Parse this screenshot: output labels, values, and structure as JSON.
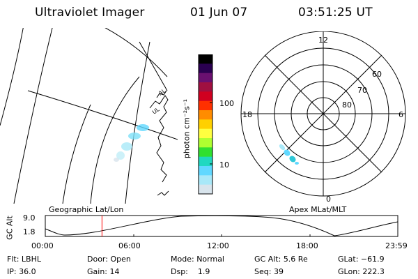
{
  "header": {
    "instrument": "Ultraviolet Imager",
    "date": "01 Jun 07",
    "time": "03:51:25 UT"
  },
  "geo_panel": {
    "label": "Geographic Lat/Lon",
    "place_labels": [
      "UL",
      "AL"
    ]
  },
  "colorbar": {
    "unit_label": "photon cm⁻²s⁻¹",
    "ticks": [
      "100",
      "10"
    ],
    "colors": [
      "#000000",
      "#2a0050",
      "#6a1070",
      "#a01040",
      "#d00020",
      "#ff3000",
      "#ff8c00",
      "#ffd000",
      "#ffff40",
      "#b0ff30",
      "#30e030",
      "#20d8c0",
      "#60d8ff",
      "#a8e8f8",
      "#d8e4ec"
    ]
  },
  "polar_panel": {
    "label": "Apex MLat/MLT",
    "mlt_labels": {
      "top": "12",
      "left": "18",
      "right": "6",
      "bottom": "0"
    },
    "lat_labels": [
      "60",
      "70",
      "80"
    ]
  },
  "alt_plot": {
    "ylabel": "GC Alt",
    "yticks": [
      "9.0",
      "1.8"
    ],
    "xticks": [
      "00:00",
      "06:00",
      "12:00",
      "18:00",
      "23:59"
    ],
    "current_time_hours": 3.86
  },
  "info": {
    "flt_label": "Flt:",
    "flt_value": "LBHL",
    "door_label": "Door:",
    "door_value": "Open",
    "mode_label": "Mode:",
    "mode_value": "Normal",
    "gcalt_label": "GC Alt:",
    "gcalt_value": "5.6 Re",
    "glat_label": "GLat:",
    "glat_value": "−61.9",
    "ip_label": "IP:",
    "ip_value": "36.0",
    "gain_label": "Gain:",
    "gain_value": "14",
    "dsp_label": "Dsp:",
    "dsp_value": "1.9",
    "seq_label": "Seq:",
    "seq_value": "39",
    "glon_label": "GLon:",
    "glon_value": "222.3"
  }
}
